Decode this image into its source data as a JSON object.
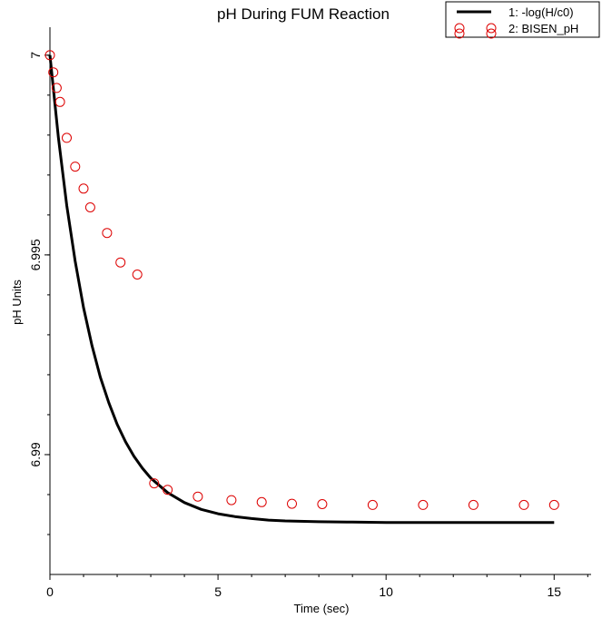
{
  "chart_data": {
    "type": "line",
    "title": "pH During FUM Reaction",
    "xlabel": "Time (sec)",
    "ylabel": "pH Units",
    "xlim": [
      0,
      16.1
    ],
    "ylim": [
      6.987,
      7.0007
    ],
    "xticks": [
      0,
      5,
      10,
      15
    ],
    "xtick_labels": [
      "0",
      "5",
      "10",
      "15"
    ],
    "yticks": [
      6.99,
      6.995,
      7.0
    ],
    "ytick_labels": [
      "6.99",
      "6.995",
      "7"
    ],
    "grid": false,
    "legend_position": "top-right",
    "series": [
      {
        "name": "1: -log(H/c0)",
        "style": "line",
        "color": "#000000",
        "x": [
          0,
          0.25,
          0.5,
          0.75,
          1.0,
          1.25,
          1.5,
          1.75,
          2.0,
          2.25,
          2.5,
          2.75,
          3.0,
          3.5,
          4.0,
          4.5,
          5.0,
          5.5,
          6.0,
          6.5,
          7.0,
          8.0,
          9.0,
          10.0,
          11.0,
          12.0,
          13.0,
          14.0,
          15.0
        ],
        "y": [
          7.0,
          6.99794,
          6.99624,
          6.99484,
          6.99368,
          6.99273,
          6.99194,
          6.9913,
          6.99076,
          6.99032,
          6.98996,
          6.98966,
          6.98941,
          6.98905,
          6.9888,
          6.98863,
          6.98852,
          6.98845,
          6.9884,
          6.98836,
          6.98834,
          6.98832,
          6.98831,
          6.9883,
          6.9883,
          6.9883,
          6.9883,
          6.9883,
          6.9883
        ]
      },
      {
        "name": "2: BISEN_pH",
        "style": "markers",
        "color": "#dd0000",
        "x": [
          0,
          0.1,
          0.2,
          0.3,
          0.5,
          0.75,
          1.0,
          1.2,
          1.7,
          2.1,
          2.6,
          3.1,
          3.5,
          4.4,
          5.4,
          6.3,
          7.2,
          8.1,
          9.6,
          11.1,
          12.6,
          14.1,
          15.0
        ],
        "y": [
          7.0,
          6.99957,
          6.99918,
          6.99883,
          6.99793,
          6.99721,
          6.99666,
          6.99619,
          6.99555,
          6.99481,
          6.99451,
          6.98928,
          6.98912,
          6.98895,
          6.98886,
          6.98881,
          6.98877,
          6.98876,
          6.98874,
          6.98874,
          6.98874,
          6.98874,
          6.98874
        ]
      }
    ]
  },
  "legend": {
    "items": [
      "1: -log(H/c0)",
      "2: BISEN_pH"
    ]
  }
}
